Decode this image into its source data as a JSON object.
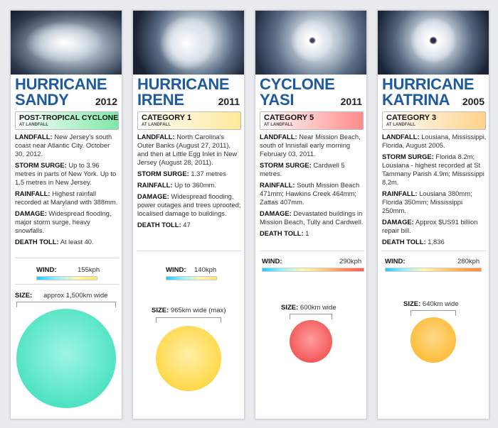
{
  "cards": [
    {
      "title_line1": "HURRICANE",
      "title_line2": "SANDY",
      "year": "2012",
      "category": "POST-TROPICAL CYCLONE",
      "category_sub": "AT LANDFALL",
      "category_color": "#7ee8a6",
      "facts": [
        {
          "label": "LANDFALL:",
          "text": "New Jersey's south coast near Atlantic City. October 30, 2012."
        },
        {
          "label": "STORM SURGE:",
          "text": "Up to 3.96 metres in parts of New York. Up to 1.5 metres in New Jersey."
        },
        {
          "label": "RAINFALL:",
          "text": "Highest rainfall recorded at Maryland with 388mm."
        },
        {
          "label": "DAMAGE:",
          "text": "Widespread flooding, major storm surge, heavy snowfalls."
        },
        {
          "label": "DEATH TOLL:",
          "text": "At least 40."
        }
      ],
      "wind_label": "WIND:",
      "wind_value": "155kph",
      "wind_kph": 155,
      "size_label": "SIZE:",
      "size_value": "approx 1,500km wide",
      "size_km": 1500,
      "circle_color": "#4fe3c3"
    },
    {
      "title_line1": "HURRICANE",
      "title_line2": "IRENE",
      "year": "2011",
      "category": "CATEGORY 1",
      "category_sub": "AT LANDFALL",
      "category_color": "#ffe89a",
      "facts": [
        {
          "label": "LANDFALL:",
          "text": "North Carolina's Outer Banks (August 27, 2011), and then at Little Egg Inlet in New Jersey (August 28, 2011)."
        },
        {
          "label": "STORM SURGE:",
          "text": "1.37 metres"
        },
        {
          "label": "RAINFALL:",
          "text": "Up to 360mm."
        },
        {
          "label": "DAMAGE:",
          "text": "Widespread flooding, power outages and trees uprooted; localised damage to buildings."
        },
        {
          "label": "DEATH TOLL:",
          "text": "47"
        }
      ],
      "wind_label": "WIND:",
      "wind_value": "140kph",
      "wind_kph": 140,
      "size_label": "SIZE:",
      "size_value": "965km wide (max)",
      "size_km": 965,
      "circle_color": "#ffd84a"
    },
    {
      "title_line1": "CYCLONE",
      "title_line2": "YASI",
      "year": "2011",
      "category": "CATEGORY 5",
      "category_sub": "AT LANDFALL",
      "category_color": "#ff8b8b",
      "facts": [
        {
          "label": "LANDFALL:",
          "text": "Near Mission Beach, south of Innisfail early morning February 03, 2011."
        },
        {
          "label": "STORM SURGE:",
          "text": "Cardwell 5 metres."
        },
        {
          "label": "RAINFALL:",
          "text": "South Mission Beach 471mm; Hawkins Creek 464mm; Zattas 407mm."
        },
        {
          "label": "DAMAGE:",
          "text": "Devastated buildings in Mission Beach, Tully and Cardwell."
        },
        {
          "label": "DEATH TOLL:",
          "text": "1"
        }
      ],
      "wind_label": "WIND:",
      "wind_value": "290kph",
      "wind_kph": 290,
      "size_label": "SIZE:",
      "size_value": "600km wide",
      "size_km": 600,
      "circle_color": "#f25b5b"
    },
    {
      "title_line1": "HURRICANE",
      "title_line2": "KATRINA",
      "year": "2005",
      "category": "CATEGORY 3",
      "category_sub": "AT LANDFALL",
      "category_color": "#ffd28a",
      "facts": [
        {
          "label": "LANDFALL:",
          "text": "Lousiana, Mississippi, Florida, August 2005."
        },
        {
          "label": "STORM SURGE:",
          "text": "Florida 8.2m; Lousiana - highest recorded at St Tammany Parish 4.9m; Mississippi 8.2m."
        },
        {
          "label": "RAINFALL:",
          "text": "Lousiana 380mm; Florida 350mm; Mississippi 250mm."
        },
        {
          "label": "DAMAGE:",
          "text": "Approx $US91 billion repair bill."
        },
        {
          "label": "DEATH TOLL:",
          "text": "1,836"
        }
      ],
      "wind_label": "WIND:",
      "wind_value": "280kph",
      "wind_kph": 280,
      "size_label": "SIZE:",
      "size_value": "640km wide",
      "size_km": 640,
      "circle_color": "#ffbe3c"
    }
  ]
}
